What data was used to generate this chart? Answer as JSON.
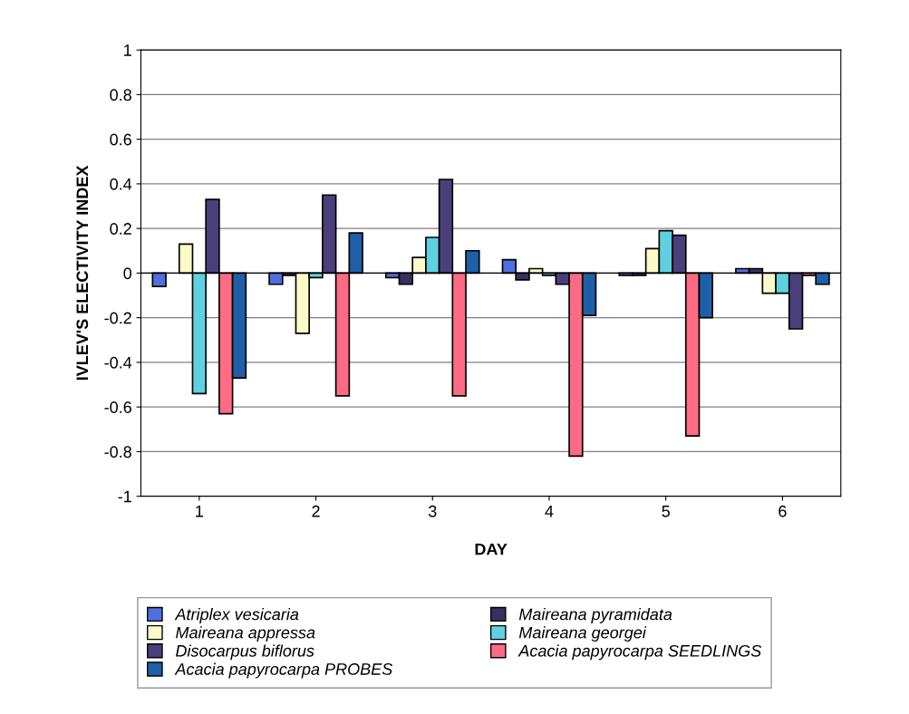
{
  "chart_data": {
    "type": "bar",
    "xlabel": "DAY",
    "ylabel": "IVLEV'S ELECTIVITY INDEX",
    "categories": [
      "1",
      "2",
      "3",
      "4",
      "5",
      "6"
    ],
    "series": [
      {
        "name": "Atriplex vesicaria",
        "color": "#4f6fe0",
        "values": [
          -0.06,
          -0.05,
          -0.02,
          0.06,
          -0.01,
          0.02
        ]
      },
      {
        "name": "Maireana pyramidata",
        "color": "#3a3060",
        "values": [
          null,
          -0.01,
          -0.05,
          -0.03,
          -0.01,
          0.02
        ]
      },
      {
        "name": "Maireana appressa",
        "color": "#fbfbc8",
        "values": [
          0.13,
          -0.27,
          0.07,
          0.02,
          0.11,
          -0.09
        ]
      },
      {
        "name": "Maireana georgei",
        "color": "#5fd0e0",
        "values": [
          -0.54,
          -0.02,
          0.16,
          -0.01,
          0.19,
          -0.09
        ]
      },
      {
        "name": "Disocarpus biflorus",
        "color": "#4a3f7a",
        "values": [
          0.33,
          0.35,
          0.42,
          -0.05,
          0.17,
          -0.25
        ]
      },
      {
        "name": "Acacia papyrocarpa SEEDLINGS",
        "color": "#ff6b84",
        "values": [
          -0.63,
          -0.55,
          -0.55,
          -0.82,
          -0.73,
          -0.01
        ]
      },
      {
        "name": "Acacia papyrocarpa PROBES",
        "color": "#1e5fa8",
        "values": [
          -0.47,
          0.18,
          0.1,
          -0.19,
          -0.2,
          -0.05
        ]
      }
    ],
    "ylim": [
      -1,
      1
    ],
    "yticks": [
      -1,
      -0.8,
      -0.6,
      -0.4,
      -0.2,
      0,
      0.2,
      0.4,
      0.6,
      0.8,
      1
    ],
    "grid": "y",
    "legend": "bottom"
  }
}
